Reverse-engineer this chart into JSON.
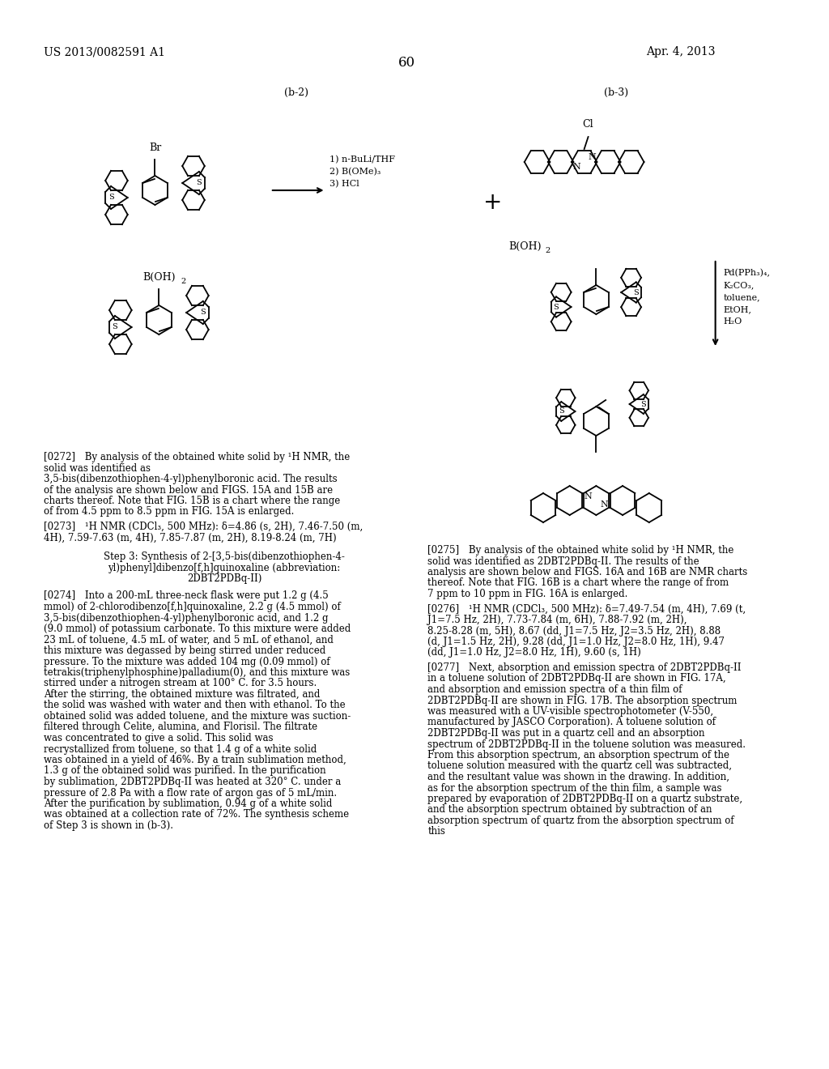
{
  "page_number": "60",
  "patent_number": "US 2013/0082591 A1",
  "patent_date": "Apr. 4, 2013",
  "background_color": "#ffffff",
  "text_color": "#000000",
  "label_b2": "(b-2)",
  "label_b3": "(b-3)",
  "reaction_conditions_b2": [
    "1) n-BuLi/THF",
    "2) B(OMe)₃",
    "3) HCl"
  ],
  "reaction_conditions_b3": [
    "Pd(PPh₃)₄,",
    "K₂CO₃,",
    "toluene,",
    "EtOH,",
    "H₂O"
  ],
  "paragraph_0272": "[0272] By analysis of the obtained white solid by ¹H NMR, the solid was identified as 3,5-bis(dibenzothiophen-4-yl)phenylboronic acid. The results of the analysis are shown below and FIGS. 15A and 15B are charts thereof. Note that FIG. 15B is a chart where the range of from 4.5 ppm to 8.5 ppm in FIG. 15A is enlarged.",
  "paragraph_0273": "[0273] ¹H NMR (CDCl₃, 500 MHz): δ=4.86 (s, 2H), 7.46-7.50 (m, 4H), 7.59-7.63 (m, 4H), 7.85-7.87 (m, 2H), 8.19-8.24 (m, 7H)",
  "step3_title": "Step 3: Synthesis of 2-[3,5-bis(dibenzothiophen-4-yl)phenyl]dibenzo[f,h]quinoxaline (abbreviation: 2DBT2PDBq-II)",
  "paragraph_0274": "[0274] Into a 200-mL three-neck flask were put 1.2 g (4.5 mmol) of 2-chlorodibenzo[f,h]quinoxaline, 2.2 g (4.5 mmol) of 3,5-bis(dibenzothiophen-4-yl)phenylboronic acid, and 1.2 g (9.0 mmol) of potassium carbonate. To this mixture were added 23 mL of toluene, 4.5 mL of water, and 5 mL of ethanol, and this mixture was degassed by being stirred under reduced pressure. To the mixture was added 104 mg (0.09 mmol) of tetrakis(triphenylphosphine)palladium(0), and this mixture was stirred under a nitrogen stream at 100° C. for 3.5 hours. After the stirring, the obtained mixture was filtrated, and the solid was washed with water and then with ethanol. To the obtained solid was added toluene, and the mixture was suction-filtered through Celite, alumina, and Florisil. The filtrate was concentrated to give a solid. This solid was recrystallized from toluene, so that 1.4 g of a white solid was obtained in a yield of 46%. By a train sublimation method, 1.3 g of the obtained solid was purified. In the purification by sublimation, 2DBT2PDBq-II was heated at 320° C. under a pressure of 2.8 Pa with a flow rate of argon gas of 5 mL/min. After the purification by sublimation, 0.94 g of a white solid was obtained at a collection rate of 72%. The synthesis scheme of Step 3 is shown in (b-3).",
  "paragraph_0275": "[0275] By analysis of the obtained white solid by ¹H NMR, the solid was identified as 2DBT2PDBq-II. The results of the analysis are shown below and FIGS. 16A and 16B are NMR charts thereof. Note that FIG. 16B is a chart where the range of from 7 ppm to 10 ppm in FIG. 16A is enlarged.",
  "paragraph_0276": "[0276] ¹H NMR (CDCl₃, 500 MHz): δ=7.49-7.54 (m, 4H), 7.69 (t, J1=7.5 Hz, 2H), 7.73-7.84 (m, 6H), 7.88-7.92 (m, 2H), 8.25-8.28 (m, 5H), 8.67 (dd, J1=7.5 Hz, J2=3.5 Hz, 2H), 8.88 (d, J1=1.5 Hz, 2H), 9.28 (dd, J1=1.0 Hz, J2=8.0 Hz, 1H), 9.47 (dd, J1=1.0 Hz, J2=8.0 Hz, 1H), 9.60 (s, 1H)",
  "paragraph_0277": "[0277] Next, absorption and emission spectra of 2DBT2PDBq-II in a toluene solution of 2DBT2PDBq-II are shown in FIG. 17A, and absorption and emission spectra of a thin film of 2DBT2PDBq-II are shown in FIG. 17B. The absorption spectrum was measured with a UV-visible spectrophotometer (V-550, manufactured by JASCO Corporation). A toluene solution of 2DBT2PDBq-II was put in a quartz cell and an absorption spectrum of 2DBT2PDBq-II in the toluene solution was measured. From this absorption spectrum, an absorption spectrum of the toluene solution measured with the quartz cell was subtracted, and the resultant value was shown in the drawing. In addition, as for the absorption spectrum of the thin film, a sample was prepared by evaporation of 2DBT2PDBq-II on a quartz substrate, and the absorption spectrum obtained by subtraction of an absorption spectrum of quartz from the absorption spectrum of this"
}
